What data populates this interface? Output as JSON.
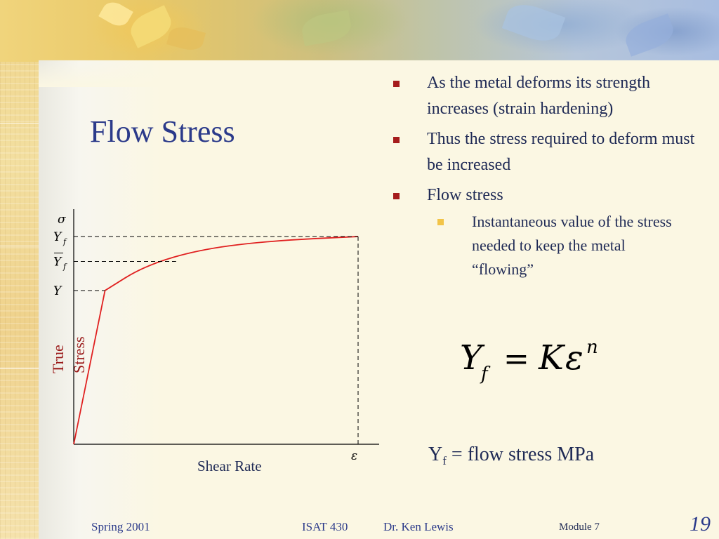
{
  "slide": {
    "title": "Flow Stress",
    "bullets": [
      {
        "text": "As  the metal deforms its strength increases (strain hardening)"
      },
      {
        "text": "Thus the stress required to deform must be increased"
      },
      {
        "text": "Flow stress"
      }
    ],
    "sub_bullets": [
      {
        "text": "Instantaneous value of the stress needed to keep the metal “flowing”"
      }
    ],
    "formula": {
      "lhs": "Y",
      "lhs_sub": "f",
      "equals": "=",
      "coef": "K",
      "var": "ε",
      "exponent": "n"
    },
    "definition": {
      "prefix": "Y",
      "sub": "f",
      "text": " = flow stress MPa"
    }
  },
  "chart_data": {
    "type": "line",
    "xlabel": "Shear Rate",
    "ylabel_words": [
      "True",
      "Stress"
    ],
    "x_axis_symbol": "ε",
    "y_axis_symbol": "σ",
    "y_ticks": [
      {
        "label": "Y",
        "sub": "f",
        "bar": false,
        "level": 1.0
      },
      {
        "label": "Y",
        "sub": "f",
        "bar": true,
        "level": 0.88
      },
      {
        "label": "Y",
        "sub": "",
        "bar": false,
        "level": 0.74
      }
    ],
    "curve": "linear elastic rise to Y, then strain-hardening curve rising toward Yf",
    "series": [
      {
        "x": [
          0,
          0.11,
          0.25,
          0.45,
          0.7,
          1.0
        ],
        "y": [
          0,
          0.74,
          0.86,
          0.94,
          0.98,
          1.0
        ]
      }
    ]
  },
  "footer": {
    "left": "Spring 2001",
    "course": "ISAT 430",
    "author": "Dr. Ken Lewis",
    "module": "Module 7",
    "page": "19"
  },
  "colors": {
    "title": "#2b3a8a",
    "bullet_marker": "#a51c1c",
    "sub_bullet_marker": "#f2c448",
    "curve": "#e02020",
    "ylabel": "#9a1a1a"
  }
}
